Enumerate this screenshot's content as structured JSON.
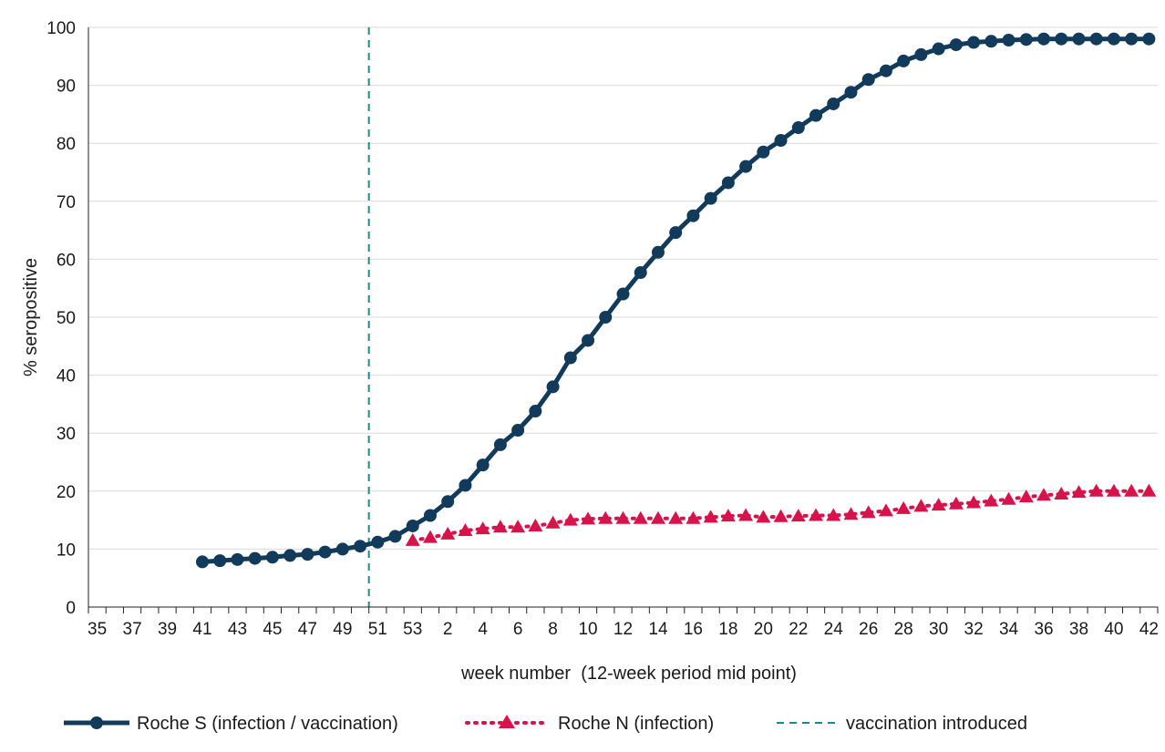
{
  "chart_data": {
    "type": "line",
    "title": "",
    "xlabel": "week number  (12-week period mid point)",
    "ylabel": "% seropositive",
    "ylim": [
      0,
      100
    ],
    "yticks": [
      0,
      10,
      20,
      30,
      40,
      50,
      60,
      70,
      80,
      90,
      100
    ],
    "grid": "horizontal",
    "legend_position": "bottom",
    "x_tick_labels": [
      "35",
      "37",
      "39",
      "41",
      "43",
      "45",
      "47",
      "49",
      "51",
      "53",
      "2",
      "4",
      "6",
      "8",
      "10",
      "12",
      "14",
      "16",
      "18",
      "20",
      "22",
      "24",
      "26",
      "28",
      "30",
      "32",
      "34",
      "36",
      "38",
      "40",
      "42"
    ],
    "x_weeks": [
      "35",
      "36",
      "37",
      "38",
      "39",
      "40",
      "41",
      "42",
      "43",
      "44",
      "45",
      "46",
      "47",
      "48",
      "49",
      "50",
      "51",
      "52",
      "53",
      "1",
      "2",
      "3",
      "4",
      "5",
      "6",
      "7",
      "8",
      "9",
      "10",
      "11",
      "12",
      "13",
      "14",
      "15",
      "16",
      "17",
      "18",
      "19",
      "20",
      "21",
      "22",
      "23",
      "24",
      "25",
      "26",
      "27",
      "28",
      "29",
      "30",
      "31",
      "32",
      "33",
      "34",
      "35",
      "36",
      "37",
      "38",
      "39",
      "40",
      "41",
      "42"
    ],
    "vaccination_introduced_week": "50",
    "series": [
      {
        "name": "Roche S (infection / vaccination)",
        "color": "#123a5a",
        "marker": "circle",
        "line_style": "solid",
        "start_week": "41",
        "values": [
          7.8,
          8.0,
          8.2,
          8.4,
          8.6,
          8.9,
          9.1,
          9.5,
          10.0,
          10.5,
          11.2,
          12.2,
          14.0,
          15.8,
          18.2,
          21.0,
          24.5,
          28.0,
          30.5,
          33.8,
          38.0,
          43.0,
          46.0,
          50.0,
          54.0,
          57.7,
          61.2,
          64.6,
          67.5,
          70.5,
          73.2,
          76.0,
          78.5,
          80.5,
          82.7,
          84.8,
          86.8,
          88.8,
          91.0,
          92.5,
          94.2,
          95.3,
          96.3,
          97.0,
          97.4,
          97.6,
          97.8,
          97.9,
          98.0,
          98.0,
          98.0,
          98.0,
          98.0,
          98.0,
          98.0
        ]
      },
      {
        "name": "Roche N (infection)",
        "color": "#d6144b",
        "marker": "triangle",
        "line_style": "dotted",
        "start_week": "53",
        "values": [
          11.5,
          12.0,
          12.6,
          13.2,
          13.5,
          13.8,
          13.8,
          14.0,
          14.5,
          15.0,
          15.2,
          15.3,
          15.3,
          15.3,
          15.3,
          15.3,
          15.3,
          15.5,
          15.7,
          15.8,
          15.5,
          15.6,
          15.7,
          15.8,
          15.8,
          16.0,
          16.3,
          16.6,
          17.0,
          17.4,
          17.6,
          17.8,
          18.0,
          18.3,
          18.6,
          19.0,
          19.3,
          19.5,
          19.8,
          20.0,
          20.0,
          20.0,
          20.0
        ]
      }
    ]
  },
  "legend": {
    "items": [
      {
        "label": "Roche S (infection / vaccination)",
        "color": "#123a5a",
        "style": "solid-circle"
      },
      {
        "label": "Roche N (infection)",
        "color": "#d6144b",
        "style": "dotted-triangle"
      },
      {
        "label": "vaccination introduced",
        "color": "#1a8a8f",
        "style": "dashed"
      }
    ]
  },
  "colors": {
    "grid": "#d9d9d9",
    "axis": "#222222",
    "vaccination_line": "#1a8a8f"
  }
}
